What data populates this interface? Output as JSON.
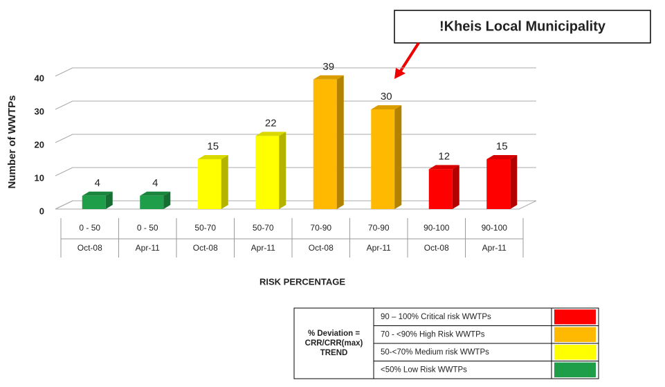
{
  "chart_data": {
    "type": "bar3d",
    "annotation": "!Kheis Local Municipality",
    "ylabel": "Number of WWTPs",
    "xlabel": "RISK PERCENTAGE",
    "categories": [
      "0 - 50",
      "0 - 50",
      "50-70",
      "50-70",
      "70-90",
      "70-90",
      "90-100",
      "90-100"
    ],
    "periods": [
      "Oct-08",
      "Apr-11",
      "Oct-08",
      "Apr-11",
      "Oct-08",
      "Apr-11",
      "Oct-08",
      "Apr-11"
    ],
    "values": [
      4,
      4,
      15,
      22,
      39,
      30,
      12,
      15
    ],
    "colors": [
      "#1e9e48",
      "#1e9e48",
      "#ffff00",
      "#ffff00",
      "#ffb900",
      "#ffb900",
      "#ff0000",
      "#ff0000"
    ],
    "ylim": [
      0,
      40
    ],
    "yticks": [
      0,
      10,
      20,
      30,
      40
    ],
    "grid": true,
    "legend": {
      "title": [
        "% Deviation =",
        "CRR/CRR(max)",
        "TREND"
      ],
      "items": [
        {
          "label": "90 – 100% Critical risk WWTPs",
          "color": "#ff0000"
        },
        {
          "label": "70 - <90% High Risk WWTPs",
          "color": "#ffb900"
        },
        {
          "label": "50-<70% Medium risk WWTPs",
          "color": "#ffff00"
        },
        {
          "label": "<50% Low Risk WWTPs",
          "color": "#1e9e48"
        }
      ]
    }
  }
}
